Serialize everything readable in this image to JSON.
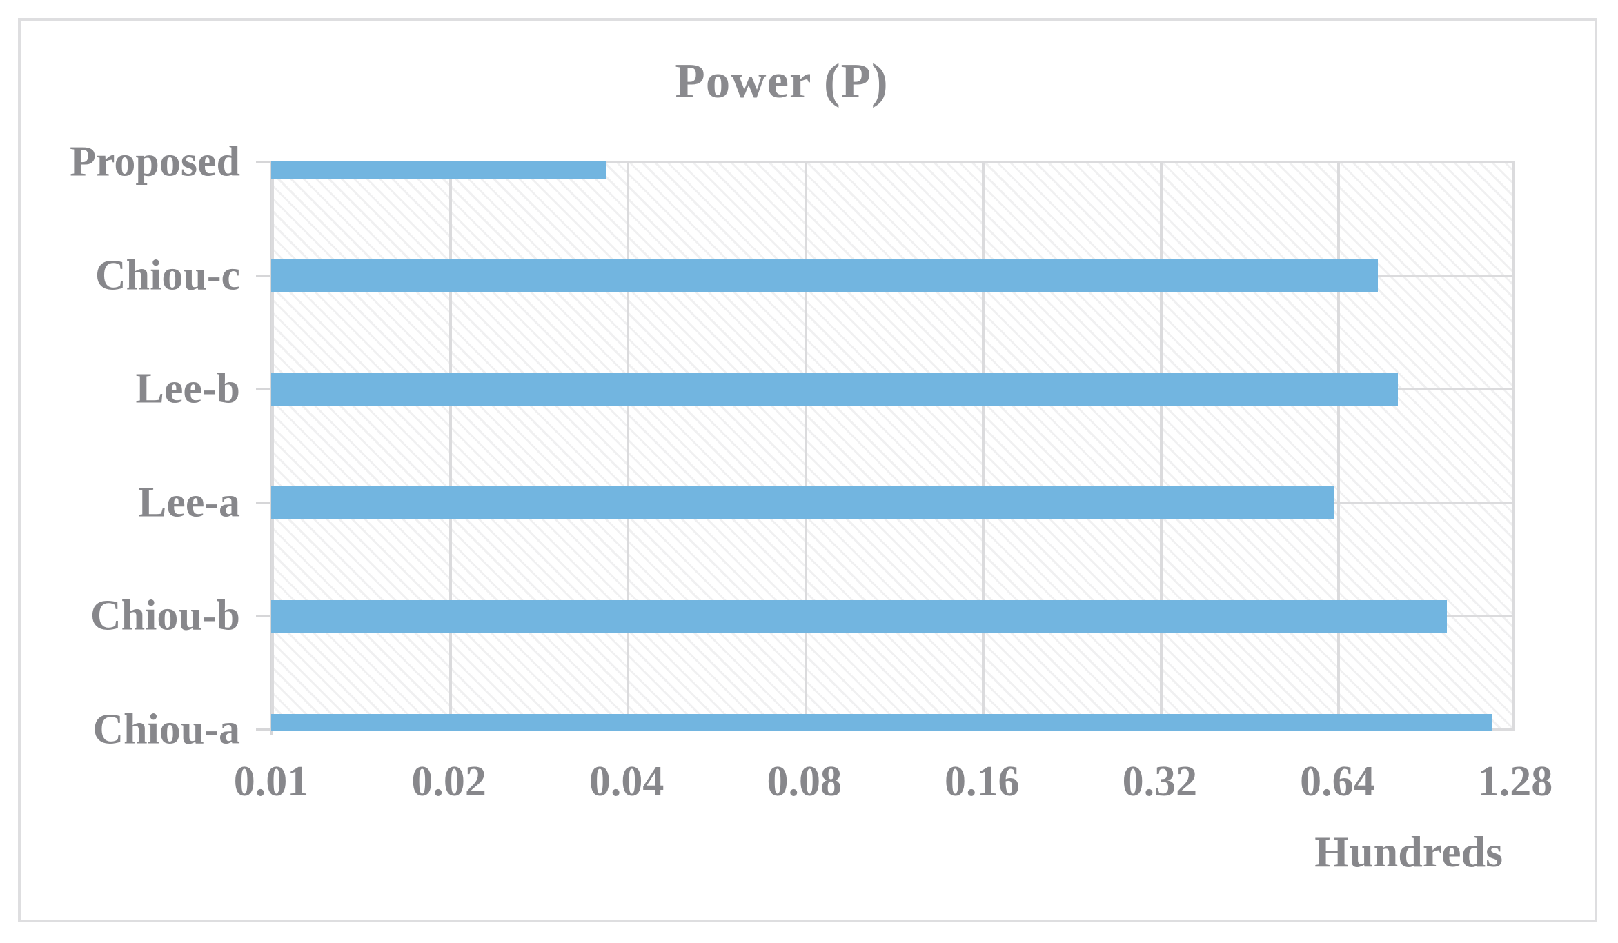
{
  "title": "Power (P)",
  "axis_unit_label": "Hundreds",
  "colors": {
    "bar": "#72b5e0",
    "gridline": "#dbdbdd",
    "text": "#87878b",
    "chart_border": "#dedee0"
  },
  "chart_data": {
    "type": "bar",
    "orientation": "horizontal",
    "title": "Power (P)",
    "categories": [
      "Proposed",
      "Chiou-c",
      "Lee-b",
      "Lee-a",
      "Chiou-b",
      "Chiou-a"
    ],
    "values": [
      0.037,
      0.75,
      0.81,
      0.63,
      0.98,
      1.17
    ],
    "xlabel": "Hundreds",
    "x_scale": "log2",
    "x_min": 0.01,
    "x_max": 1.28,
    "x_tick_labels": [
      "0.01",
      "0.02",
      "0.04",
      "0.08",
      "0.16",
      "0.32",
      "0.64",
      "1.28"
    ],
    "grid": true,
    "legend": false,
    "plot_background": "diagonal-hatch"
  }
}
